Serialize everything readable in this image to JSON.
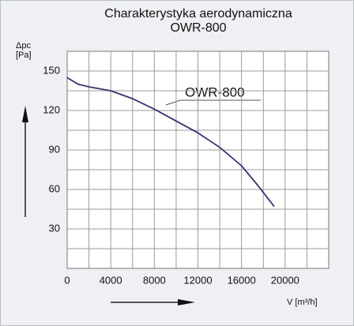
{
  "chart_data": {
    "type": "line",
    "title": "Charakterystyka aerodynamiczna",
    "subtitle": "OWR-800",
    "y_label_1": "Δpc",
    "y_label_2": "[Pa]",
    "x_label": "V [m³/h]",
    "annotation": "OWR-800",
    "x": [
      0,
      1000,
      2000,
      4000,
      6000,
      8000,
      10000,
      12000,
      14000,
      16000,
      17500,
      19000
    ],
    "series": [
      {
        "name": "OWR-800",
        "color": "#3b2f80",
        "values": [
          145,
          140,
          138,
          135,
          129,
          121,
          112,
          103,
          92,
          78,
          63,
          47
        ]
      }
    ],
    "xlim": [
      0,
      24000
    ],
    "ylim": [
      0,
      165
    ],
    "xticks": [
      0,
      4000,
      8000,
      12000,
      16000,
      20000
    ],
    "yticks": [
      30,
      60,
      90,
      120,
      150
    ],
    "xgrid": [
      2000,
      4000,
      6000,
      8000,
      10000,
      12000,
      14000,
      16000,
      18000,
      20000,
      22000
    ],
    "ygrid": [
      15,
      30,
      45,
      60,
      75,
      90,
      105,
      120,
      135,
      150
    ],
    "grid": true
  }
}
